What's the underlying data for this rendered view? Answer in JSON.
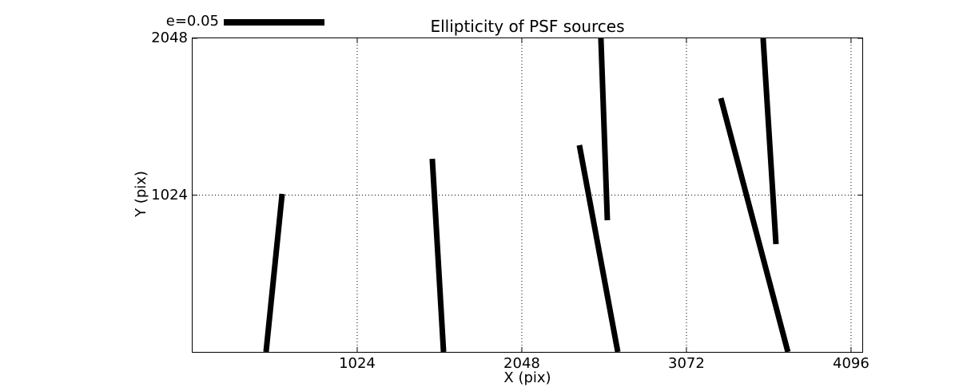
{
  "chart_data": {
    "type": "line",
    "variant": "ellipticity whisker map (quiver-style segments)",
    "title": "Ellipticity of PSF sources",
    "xlabel": "X (pix)",
    "ylabel": "Y (pix)",
    "xlim": [
      0,
      4166
    ],
    "ylim": [
      0,
      2048
    ],
    "xticks": [
      1024,
      2048,
      3072,
      4096
    ],
    "yticks": [
      1024,
      2048
    ],
    "grid": "dotted, at each major tick",
    "legend": {
      "label": "e=0.05",
      "position": "above plot, upper left"
    },
    "whiskers": [
      {
        "x1": 557,
        "y1": 1032,
        "x2": 457,
        "y2": 0
      },
      {
        "x1": 1491,
        "y1": 1261,
        "x2": 1561,
        "y2": 0
      },
      {
        "x1": 2540,
        "y1": 2048,
        "x2": 2580,
        "y2": 860
      },
      {
        "x1": 2406,
        "y1": 1350,
        "x2": 2645,
        "y2": 0
      },
      {
        "x1": 3549,
        "y1": 2048,
        "x2": 3629,
        "y2": 704
      },
      {
        "x1": 3286,
        "y1": 1657,
        "x2": 3703,
        "y2": 0
      }
    ],
    "colors": {
      "stroke": "#000000",
      "background": "#ffffff"
    }
  }
}
